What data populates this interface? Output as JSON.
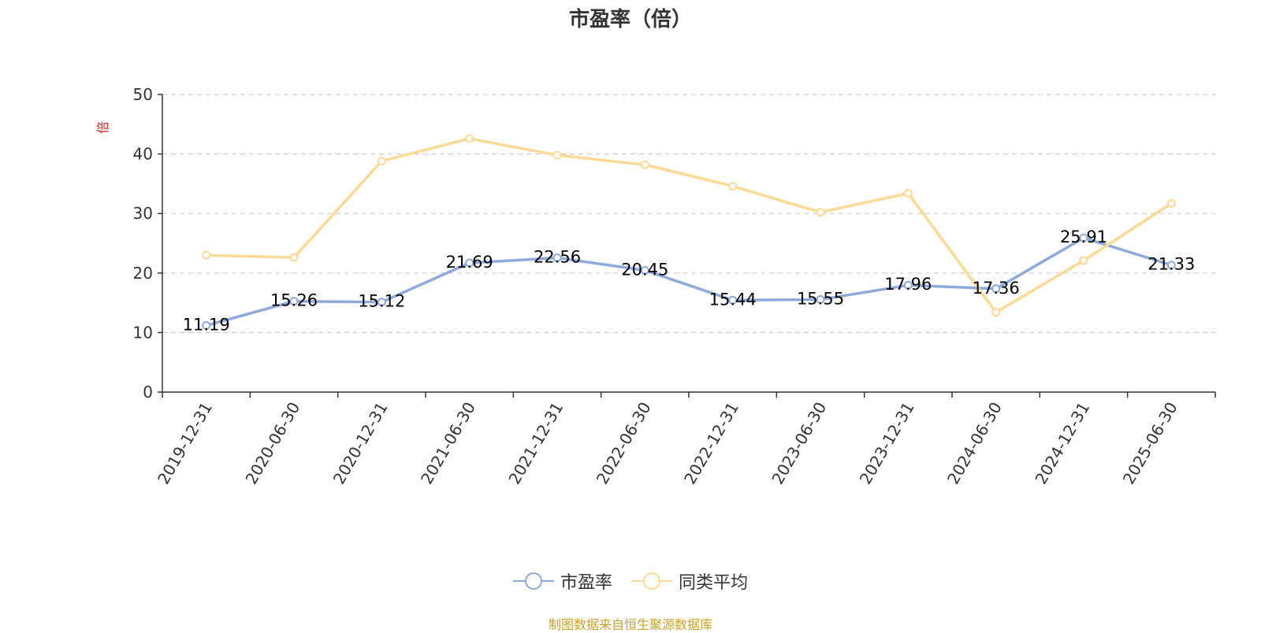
{
  "chart_data": {
    "type": "line",
    "title": "市盈率（倍）",
    "ylabel": "倍",
    "xlabel": "",
    "ylim": [
      0,
      50
    ],
    "yticks": [
      0,
      10,
      20,
      30,
      40,
      50
    ],
    "grid": true,
    "legend_position": "bottom",
    "categories": [
      "2019-12-31",
      "2020-06-30",
      "2020-12-31",
      "2021-06-30",
      "2021-12-31",
      "2022-06-30",
      "2022-12-31",
      "2023-06-30",
      "2023-12-31",
      "2024-06-30",
      "2024-12-31",
      "2025-06-30"
    ],
    "series": [
      {
        "name": "市盈率",
        "color": "#8eaadb",
        "values": [
          11.19,
          15.26,
          15.12,
          21.69,
          22.56,
          20.45,
          15.44,
          15.55,
          17.96,
          17.36,
          25.91,
          21.33
        ],
        "labels": [
          "11.19",
          "15.26",
          "15.12",
          "21.69",
          "22.56",
          "20.45",
          "15.44",
          "15.55",
          "17.96",
          "17.36",
          "25.91",
          "21.33"
        ]
      },
      {
        "name": "同类平均",
        "color": "#fcd994",
        "values": [
          23.0,
          22.6,
          38.8,
          42.6,
          39.8,
          38.2,
          34.6,
          30.2,
          33.4,
          13.4,
          22.1,
          31.7
        ]
      }
    ]
  },
  "footer": {
    "text": "制图数据来自恒生聚源数据库",
    "color": "#c9a227"
  }
}
